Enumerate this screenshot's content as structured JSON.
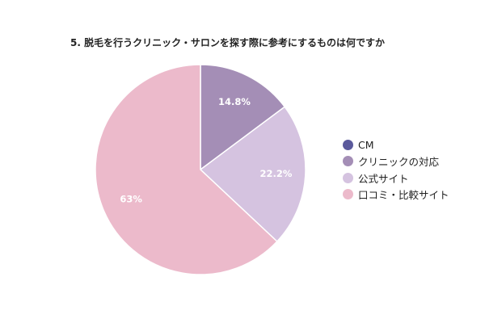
{
  "chart_data": {
    "type": "pie",
    "title": "5. 脱毛を行うクリニック・サロンを探す際に参考にするものは何ですか",
    "slices": [
      {
        "name": "CM",
        "value": 0,
        "label": "",
        "color": "#5b5a9c"
      },
      {
        "name": "クリニックの対応",
        "value": 14.8,
        "label": "14.8%",
        "color": "#a48eb6"
      },
      {
        "name": "公式サイト",
        "value": 22.2,
        "label": "22.2%",
        "color": "#d5c3e0"
      },
      {
        "name": "口コミ・比較サイト",
        "value": 63,
        "label": "63%",
        "color": "#ecbacb"
      }
    ],
    "legend_position": "right",
    "start_angle": "top, clockwise"
  }
}
